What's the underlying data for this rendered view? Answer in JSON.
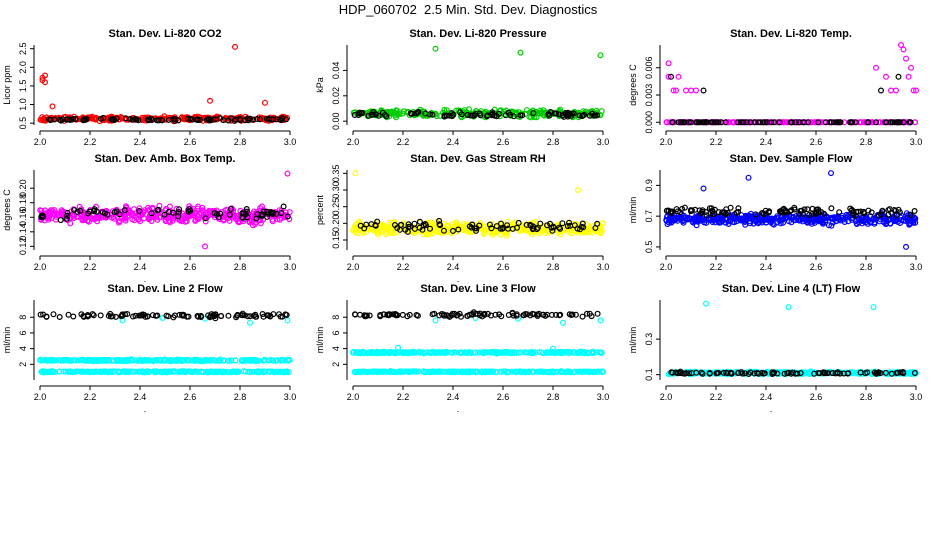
{
  "page_title": "HDP_060702  2.5 Min. Std. Dev. Diagnostics",
  "chart_data": [
    {
      "type": "scatter",
      "title": "Stan. Dev. Li-820 CO2",
      "ylabel": "Licor ppm",
      "xlabel": ".",
      "xlim": [
        2.0,
        3.0
      ],
      "ylim": [
        0.45,
        2.6
      ],
      "xticks": [
        "2.0",
        "2.2",
        "2.4",
        "2.6",
        "2.8",
        "3.0"
      ],
      "yticks": [
        "0.5",
        "1.0",
        "1.5",
        "2.0",
        "2.5"
      ],
      "grid": false,
      "series": [
        {
          "color": "#ff0000",
          "base": 0.62,
          "spread": 0.08,
          "n": 260,
          "outliers": [
            [
              2.01,
              1.72
            ],
            [
              2.01,
              1.65
            ],
            [
              2.02,
              1.78
            ],
            [
              2.02,
              1.6
            ],
            [
              2.78,
              2.55
            ],
            [
              2.68,
              1.1
            ],
            [
              2.9,
              1.05
            ],
            [
              2.05,
              0.95
            ]
          ]
        },
        {
          "color": "#000000",
          "base": 0.6,
          "spread": 0.05,
          "n": 90,
          "outliers": []
        }
      ]
    },
    {
      "type": "scatter",
      "title": "Stan. Dev. Li-820 Pressure",
      "ylabel": "kPa",
      "xlabel": ".",
      "xlim": [
        2.0,
        3.0
      ],
      "ylim": [
        -0.003,
        0.06
      ],
      "xticks": [
        "2.0",
        "2.2",
        "2.4",
        "2.6",
        "2.8",
        "3.0"
      ],
      "yticks": [
        "0.00",
        "0.02",
        "0.04"
      ],
      "grid": false,
      "series": [
        {
          "color": "#00cc00",
          "base": 0.006,
          "spread": 0.004,
          "n": 260,
          "outliers": [
            [
              2.33,
              0.057
            ],
            [
              2.67,
              0.054
            ],
            [
              2.99,
              0.052
            ]
          ]
        },
        {
          "color": "#000000",
          "base": 0.005,
          "spread": 0.003,
          "n": 90,
          "outliers": []
        }
      ]
    },
    {
      "type": "scatter",
      "title": "Stan. Dev. Li-820 Temp.",
      "ylabel": "degrees C",
      "xlabel": ".",
      "xlim": [
        2.0,
        3.0
      ],
      "ylim": [
        -0.0003,
        0.0085
      ],
      "xticks": [
        "2.0",
        "2.2",
        "2.4",
        "2.6",
        "2.8",
        "3.0"
      ],
      "yticks": [
        "0.000",
        "0.003",
        "0.006"
      ],
      "grid": false,
      "series": [
        {
          "color": "#ff00ff",
          "base": 0.0,
          "spread": 0.0,
          "n": 200,
          "outliers": [
            [
              2.01,
              0.0065
            ],
            [
              2.01,
              0.005
            ],
            [
              2.03,
              0.0035
            ],
            [
              2.05,
              0.005
            ],
            [
              2.08,
              0.0035
            ],
            [
              2.1,
              0.0035
            ],
            [
              2.12,
              0.0035
            ],
            [
              2.04,
              0.0035
            ],
            [
              2.84,
              0.006
            ],
            [
              2.88,
              0.005
            ],
            [
              2.9,
              0.0035
            ],
            [
              2.92,
              0.0035
            ],
            [
              2.94,
              0.0085
            ],
            [
              2.95,
              0.008
            ],
            [
              2.96,
              0.007
            ],
            [
              2.97,
              0.005
            ],
            [
              2.98,
              0.006
            ],
            [
              2.99,
              0.0035
            ],
            [
              3.0,
              0.0035
            ]
          ]
        },
        {
          "color": "#000000",
          "base": 0.0,
          "spread": 0.0,
          "n": 80,
          "outliers": [
            [
              2.02,
              0.005
            ],
            [
              2.15,
              0.0035
            ],
            [
              2.86,
              0.0035
            ],
            [
              2.93,
              0.005
            ]
          ]
        }
      ]
    },
    {
      "type": "scatter",
      "title": "Stan. Dev. Amb. Box Temp.",
      "ylabel": "degrees C",
      "xlabel": ".",
      "xlim": [
        2.0,
        3.0
      ],
      "ylim": [
        0.115,
        0.225
      ],
      "xticks": [
        "2.0",
        "2.2",
        "2.4",
        "2.6",
        "2.8",
        "3.0"
      ],
      "yticks": [
        "0.12",
        "0.14",
        "0.16",
        "0.18",
        "0.20"
      ],
      "grid": false,
      "series": [
        {
          "color": "#ff00ff",
          "base": 0.163,
          "spread": 0.016,
          "n": 420,
          "outliers": [
            [
              2.66,
              0.12
            ],
            [
              2.99,
              0.22
            ]
          ]
        },
        {
          "color": "#000000",
          "base": 0.165,
          "spread": 0.012,
          "n": 70,
          "outliers": []
        }
      ]
    },
    {
      "type": "scatter",
      "title": "Stan. Dev. Gas Stream RH",
      "ylabel": "percent",
      "xlabel": ".",
      "xlim": [
        2.0,
        3.0
      ],
      "ylim": [
        0.12,
        0.36
      ],
      "xticks": [
        "2.0",
        "2.2",
        "2.4",
        "2.6",
        "2.8",
        "3.0"
      ],
      "yticks": [
        "0.15",
        "0.20",
        "0.25",
        "0.30",
        "0.35"
      ],
      "grid": false,
      "series": [
        {
          "color": "#ffff00",
          "base": 0.185,
          "spread": 0.025,
          "n": 420,
          "outliers": [
            [
              2.01,
              0.35
            ],
            [
              2.9,
              0.3
            ]
          ]
        },
        {
          "color": "#000000",
          "base": 0.19,
          "spread": 0.02,
          "n": 80,
          "outliers": []
        }
      ]
    },
    {
      "type": "scatter",
      "title": "Stan. Dev. Sample Flow",
      "ylabel": "ml/min",
      "xlabel": ".",
      "xlim": [
        2.0,
        3.0
      ],
      "ylim": [
        0.48,
        1.0
      ],
      "xticks": [
        "2.0",
        "2.2",
        "2.4",
        "2.6",
        "2.8",
        "3.0"
      ],
      "yticks": [
        "0.5",
        "0.7",
        "0.9"
      ],
      "grid": false,
      "series": [
        {
          "color": "#0000ff",
          "base": 0.68,
          "spread": 0.05,
          "n": 420,
          "outliers": [
            [
              2.33,
              0.95
            ],
            [
              2.66,
              0.98
            ],
            [
              2.96,
              0.5
            ],
            [
              2.15,
              0.88
            ]
          ]
        },
        {
          "color": "#000000",
          "base": 0.73,
          "spread": 0.04,
          "n": 110,
          "outliers": []
        }
      ]
    },
    {
      "type": "scatter",
      "title": "Stan. Dev. Line 2 Flow",
      "ylabel": "ml/min",
      "xlabel": ".",
      "xlim": [
        2.0,
        3.0
      ],
      "ylim": [
        0.0,
        10.2
      ],
      "xticks": [
        "2.0",
        "2.2",
        "2.4",
        "2.6",
        "2.8",
        "3.0"
      ],
      "yticks": [
        "2",
        "4",
        "6",
        "8"
      ],
      "grid": false,
      "series": [
        {
          "color": "#00ffff",
          "base": 2.5,
          "spread": 0.15,
          "n": 300,
          "outliers": []
        },
        {
          "color": "#00ffff",
          "base": 1.05,
          "spread": 0.1,
          "n": 300,
          "outliers": [
            [
              2.33,
              7.6
            ],
            [
              2.49,
              7.9
            ],
            [
              2.66,
              7.8
            ],
            [
              2.84,
              7.3
            ],
            [
              2.99,
              7.6
            ]
          ]
        },
        {
          "color": "#000000",
          "base": 8.2,
          "spread": 0.35,
          "n": 95,
          "outliers": []
        }
      ]
    },
    {
      "type": "scatter",
      "title": "Stan. Dev. Line 3 Flow",
      "ylabel": "ml/min",
      "xlabel": ".",
      "xlim": [
        2.0,
        3.0
      ],
      "ylim": [
        0.0,
        10.2
      ],
      "xticks": [
        "2.0",
        "2.2",
        "2.4",
        "2.6",
        "2.8",
        "3.0"
      ],
      "yticks": [
        "2",
        "4",
        "6",
        "8"
      ],
      "grid": false,
      "series": [
        {
          "color": "#00ffff",
          "base": 3.5,
          "spread": 0.15,
          "n": 300,
          "outliers": [
            [
              2.18,
              4.1
            ],
            [
              2.8,
              4.0
            ]
          ]
        },
        {
          "color": "#00ffff",
          "base": 1.05,
          "spread": 0.1,
          "n": 300,
          "outliers": [
            [
              2.33,
              7.6
            ],
            [
              2.49,
              7.9
            ],
            [
              2.66,
              7.8
            ],
            [
              2.84,
              7.3
            ],
            [
              2.99,
              7.6
            ]
          ]
        },
        {
          "color": "#000000",
          "base": 8.3,
          "spread": 0.35,
          "n": 95,
          "outliers": []
        }
      ]
    },
    {
      "type": "scatter",
      "title": "Stan. Dev. Line 4 (LT) Flow",
      "ylabel": "ml/min",
      "xlabel": ".",
      "xlim": [
        2.0,
        3.0
      ],
      "ylim": [
        0.07,
        0.52
      ],
      "xticks": [
        "2.0",
        "2.2",
        "2.4",
        "2.6",
        "2.8",
        "3.0"
      ],
      "yticks": [
        "0.1",
        "0.3"
      ],
      "grid": false,
      "series": [
        {
          "color": "#00ffff",
          "base": 0.11,
          "spread": 0.01,
          "n": 360,
          "outliers": [
            [
              2.16,
              0.5
            ],
            [
              2.49,
              0.48
            ],
            [
              2.83,
              0.48
            ]
          ]
        },
        {
          "color": "#000000",
          "base": 0.11,
          "spread": 0.008,
          "n": 90,
          "outliers": []
        }
      ]
    }
  ]
}
